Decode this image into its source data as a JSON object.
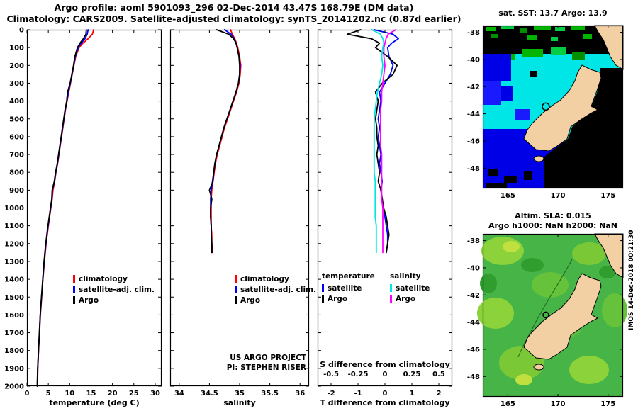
{
  "header": {
    "line1": "Argo profile: aoml 5901093_296 02-Dec-2014 43.47S 168.79E (DM data)",
    "line2": "Climatology: CARS2009. Satellite-adjusted climatology: synTS_20141202.nc (0.87d earlier)"
  },
  "credits": {
    "line1": "US ARGO PROJECT",
    "line2": "PI: STEPHEN RISER"
  },
  "watermark": "IMOS 14-Dec-2018 00:21:30",
  "chart_data": [
    {
      "id": "temperature-profile",
      "type": "line",
      "xlabel": "temperature (deg C)",
      "xlim": [
        0,
        31.5
      ],
      "ylim": [
        2000,
        0
      ],
      "xticks": [
        0,
        5,
        10,
        15,
        20,
        25,
        30
      ],
      "yticks": [
        0,
        100,
        200,
        300,
        400,
        500,
        600,
        700,
        800,
        900,
        1000,
        1100,
        1200,
        1300,
        1400,
        1500,
        1600,
        1700,
        1800,
        1900,
        2000
      ],
      "depths": [
        0,
        25,
        50,
        75,
        100,
        150,
        200,
        250,
        300,
        350,
        400,
        450,
        500,
        550,
        600,
        650,
        700,
        750,
        800,
        850,
        900,
        950,
        1000,
        1100,
        1200,
        1300,
        1400,
        1500,
        1600,
        1700,
        1800,
        1900,
        2000
      ],
      "series": [
        {
          "name": "climatology",
          "color": "#ff0000",
          "values": [
            15.6,
            15.3,
            14.3,
            13.1,
            12.2,
            11.4,
            11.0,
            10.6,
            10.2,
            9.8,
            9.4,
            9.0,
            8.7,
            8.4,
            8.1,
            7.8,
            7.5,
            7.2,
            6.8,
            6.5,
            6.1,
            5.9,
            5.6,
            5.0,
            4.5,
            4.1,
            3.75,
            3.45,
            3.15,
            2.95,
            2.72,
            2.55,
            2.45
          ]
        },
        {
          "name": "satellite-adj. clim.",
          "color": "#0000ff",
          "values": [
            14.3,
            14.1,
            13.6,
            12.7,
            12.0,
            11.3,
            10.95,
            10.55,
            10.15,
            9.7,
            9.35,
            8.95,
            8.65,
            8.35,
            8.05,
            7.75,
            7.45,
            7.15,
            6.75,
            6.45,
            5.95,
            5.85,
            5.55,
            4.95,
            4.45,
            4.05,
            3.72,
            3.42,
            3.12,
            2.92,
            2.7,
            2.52,
            2.42
          ]
        },
        {
          "name": "Argo",
          "color": "#000000",
          "values": [
            13.9,
            13.8,
            13.2,
            12.4,
            11.8,
            11.2,
            10.9,
            10.5,
            10.1,
            9.5,
            9.3,
            8.9,
            8.6,
            8.3,
            8.0,
            7.7,
            7.4,
            7.1,
            6.7,
            6.4,
            5.9,
            5.8,
            5.5,
            4.9,
            4.4,
            4.0,
            3.7,
            3.4,
            3.1,
            2.9,
            2.7,
            2.5,
            2.4
          ]
        }
      ]
    },
    {
      "id": "salinity-profile",
      "type": "line",
      "xlabel": "salinity",
      "xlim": [
        33.85,
        36.15
      ],
      "ylim": [
        2000,
        0
      ],
      "xticks": [
        34,
        34.5,
        35,
        35.5,
        36
      ],
      "yticks": [
        0,
        100,
        200,
        300,
        400,
        500,
        600,
        700,
        800,
        900,
        1000,
        1100,
        1200,
        1300,
        1400,
        1500,
        1600,
        1700,
        1800,
        1900,
        2000
      ],
      "depths": [
        0,
        25,
        50,
        75,
        100,
        150,
        200,
        250,
        300,
        350,
        400,
        450,
        500,
        550,
        600,
        650,
        700,
        750,
        800,
        850,
        900,
        950,
        1000,
        1050,
        1100,
        1150,
        1200,
        1250
      ],
      "series": [
        {
          "name": "climatology",
          "color": "#ff0000",
          "values": [
            34.85,
            34.88,
            34.92,
            34.95,
            34.97,
            35.0,
            35.02,
            35.01,
            34.99,
            34.95,
            34.9,
            34.85,
            34.8,
            34.75,
            34.71,
            34.67,
            34.63,
            34.6,
            34.58,
            34.56,
            34.54,
            34.53,
            34.53,
            34.53,
            34.53,
            34.54,
            34.54,
            34.55
          ]
        },
        {
          "name": "satellite-adj. clim.",
          "color": "#0000ff",
          "values": [
            34.75,
            34.86,
            34.91,
            34.94,
            34.96,
            34.99,
            35.01,
            35.0,
            34.98,
            34.94,
            34.89,
            34.84,
            34.79,
            34.74,
            34.7,
            34.66,
            34.62,
            34.59,
            34.57,
            34.55,
            34.53,
            34.52,
            34.52,
            34.52,
            34.53,
            34.53,
            34.54,
            34.54
          ]
        },
        {
          "name": "Argo",
          "color": "#000000",
          "values": [
            34.62,
            34.82,
            34.9,
            34.94,
            34.96,
            34.99,
            35.0,
            35.0,
            34.98,
            34.94,
            34.89,
            34.84,
            34.79,
            34.74,
            34.7,
            34.66,
            34.62,
            34.59,
            34.57,
            34.56,
            34.5,
            34.54,
            34.52,
            34.52,
            34.53,
            34.53,
            34.54,
            34.54
          ]
        }
      ]
    },
    {
      "id": "difference-from-climatology",
      "type": "line",
      "xlabel": "T difference from climatology",
      "xlabel2": "S difference from climatology",
      "xlim": [
        -2.5,
        2.5
      ],
      "x2lim": [
        -0.625,
        0.625
      ],
      "ylim": [
        2000,
        0
      ],
      "xticks": [
        -2,
        -1,
        0,
        1,
        2
      ],
      "x2ticks": [
        -0.5,
        -0.25,
        0,
        0.25,
        0.5
      ],
      "yticks": [
        0,
        100,
        200,
        300,
        400,
        500,
        600,
        700,
        800,
        900,
        1000,
        1100,
        1200,
        1300,
        1400,
        1500,
        1600,
        1700,
        1800,
        1900,
        2000
      ],
      "depths": [
        0,
        25,
        50,
        75,
        100,
        150,
        200,
        250,
        300,
        350,
        400,
        450,
        500,
        550,
        600,
        650,
        700,
        750,
        800,
        850,
        900,
        950,
        1000,
        1050,
        1100,
        1150,
        1200,
        1250
      ],
      "series": [
        {
          "name": "satellite",
          "group": "temperature",
          "axis": "x",
          "color": "#0000ff",
          "values": [
            -0.4,
            0.3,
            0.5,
            0.25,
            0.1,
            0.15,
            0.3,
            0.2,
            0.0,
            -0.2,
            -0.15,
            -0.2,
            -0.25,
            -0.2,
            -0.25,
            -0.2,
            -0.15,
            -0.2,
            -0.15,
            -0.1,
            -0.15,
            -0.1,
            -0.05,
            0.0,
            0.05,
            0.1,
            0.1,
            0.05
          ]
        },
        {
          "name": "Argo",
          "group": "temperature",
          "axis": "x",
          "color": "#000000",
          "values": [
            -0.9,
            -1.4,
            -0.5,
            -0.2,
            -0.35,
            0.1,
            0.45,
            0.3,
            -0.1,
            -0.35,
            -0.25,
            -0.3,
            -0.35,
            -0.3,
            -0.3,
            -0.25,
            -0.3,
            -0.25,
            -0.2,
            -0.25,
            -0.15,
            -0.1,
            -0.05,
            0.05,
            0.1,
            0.15,
            0.1,
            0.05
          ]
        },
        {
          "name": "satellite",
          "group": "salinity",
          "axis": "x2",
          "color": "#00e5e5",
          "values": [
            -0.12,
            -0.04,
            -0.02,
            -0.01,
            -0.02,
            -0.03,
            -0.02,
            -0.03,
            -0.05,
            -0.07,
            -0.08,
            -0.09,
            -0.1,
            -0.1,
            -0.1,
            -0.1,
            -0.1,
            -0.1,
            -0.1,
            -0.09,
            -0.09,
            -0.09,
            -0.09,
            -0.09,
            -0.08,
            -0.08,
            -0.08,
            -0.08
          ]
        },
        {
          "name": "Argo",
          "group": "salinity",
          "axis": "x2",
          "color": "#ff00ff",
          "values": [
            0.1,
            0.03,
            0.01,
            0.0,
            -0.01,
            -0.01,
            0.0,
            -0.01,
            -0.02,
            -0.03,
            -0.03,
            -0.04,
            -0.04,
            -0.04,
            -0.04,
            -0.04,
            -0.03,
            -0.03,
            -0.03,
            -0.03,
            -0.03,
            -0.03,
            -0.02,
            -0.02,
            -0.02,
            -0.02,
            -0.02,
            -0.02
          ]
        }
      ],
      "legend_groups": [
        {
          "title": "temperature",
          "items": [
            {
              "label": "satellite",
              "color": "#0000ff"
            },
            {
              "label": "Argo",
              "color": "#000000"
            }
          ]
        },
        {
          "title": "salinity",
          "items": [
            {
              "label": "satellite",
              "color": "#00e5e5"
            },
            {
              "label": "Argo",
              "color": "#ff00ff"
            }
          ]
        }
      ]
    }
  ],
  "maps": {
    "sst": {
      "title": "sat. SST: 13.7 Argo: 13.9",
      "lon_ticks": [
        165,
        170,
        175
      ],
      "lat_ticks": [
        -38,
        -40,
        -42,
        -44,
        -46,
        -48
      ],
      "lon_range": [
        162.5,
        176.5
      ],
      "lat_range": [
        -49.5,
        -37.5
      ],
      "float": {
        "lon": 168.79,
        "lat": -43.47
      }
    },
    "sla": {
      "title1": "Altim. SLA: 0.015",
      "title2": "Argo h1000: NaN h2000: NaN",
      "lon_ticks": [
        165,
        170,
        175
      ],
      "lat_ticks": [
        -38,
        -40,
        -42,
        -44,
        -46,
        -48
      ],
      "lon_range": [
        162.5,
        176.5
      ],
      "lat_range": [
        -49.5,
        -37.5
      ],
      "float": {
        "lon": 168.79,
        "lat": -43.47
      }
    }
  }
}
